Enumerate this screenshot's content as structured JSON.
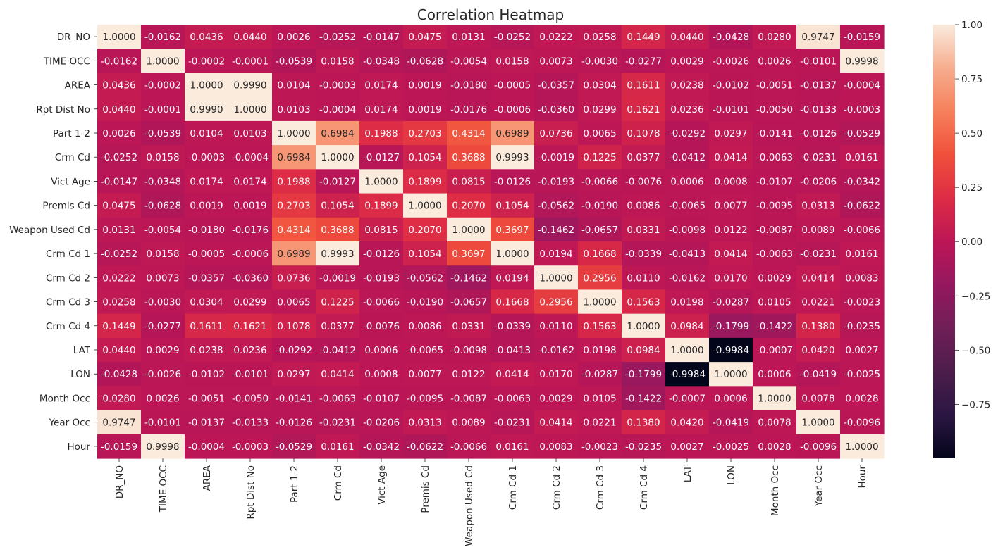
{
  "chart_data": {
    "type": "heatmap",
    "title": "Correlation Heatmap",
    "labels": [
      "DR_NO",
      "TIME OCC",
      "AREA",
      "Rpt Dist No",
      "Part 1-2",
      "Crm Cd",
      "Vict Age",
      "Premis Cd",
      "Weapon Used Cd",
      "Crm Cd 1",
      "Crm Cd 2",
      "Crm Cd 3",
      "Crm Cd 4",
      "LAT",
      "LON",
      "Month Occ",
      "Year Occ",
      "Hour"
    ],
    "matrix": [
      [
        1.0,
        -0.0162,
        0.0436,
        0.044,
        0.0026,
        -0.0252,
        -0.0147,
        0.0475,
        0.0131,
        -0.0252,
        0.0222,
        0.0258,
        0.1449,
        0.044,
        -0.0428,
        0.028,
        0.9747,
        -0.0159
      ],
      [
        -0.0162,
        1.0,
        -0.0002,
        -0.0001,
        -0.0539,
        0.0158,
        -0.0348,
        -0.0628,
        -0.0054,
        0.0158,
        0.0073,
        -0.003,
        -0.0277,
        0.0029,
        -0.0026,
        0.0026,
        -0.0101,
        0.9998
      ],
      [
        0.0436,
        -0.0002,
        1.0,
        0.999,
        0.0104,
        -0.0003,
        0.0174,
        0.0019,
        -0.018,
        -0.0005,
        -0.0357,
        0.0304,
        0.1611,
        0.0238,
        -0.0102,
        -0.0051,
        -0.0137,
        -0.0004
      ],
      [
        0.044,
        -0.0001,
        0.999,
        1.0,
        0.0103,
        -0.0004,
        0.0174,
        0.0019,
        -0.0176,
        -0.0006,
        -0.036,
        0.0299,
        0.1621,
        0.0236,
        -0.0101,
        -0.005,
        -0.0133,
        -0.0003
      ],
      [
        0.0026,
        -0.0539,
        0.0104,
        0.0103,
        1.0,
        0.6984,
        0.1988,
        0.2703,
        0.4314,
        0.6989,
        0.0736,
        0.0065,
        0.1078,
        -0.0292,
        0.0297,
        -0.0141,
        -0.0126,
        -0.0529
      ],
      [
        -0.0252,
        0.0158,
        -0.0003,
        -0.0004,
        0.6984,
        1.0,
        -0.0127,
        0.1054,
        0.3688,
        0.9993,
        -0.0019,
        0.1225,
        0.0377,
        -0.0412,
        0.0414,
        -0.0063,
        -0.0231,
        0.0161
      ],
      [
        -0.0147,
        -0.0348,
        0.0174,
        0.0174,
        0.1988,
        -0.0127,
        1.0,
        0.1899,
        0.0815,
        -0.0126,
        -0.0193,
        -0.0066,
        -0.0076,
        0.0006,
        0.0008,
        -0.0107,
        -0.0206,
        -0.0342
      ],
      [
        0.0475,
        -0.0628,
        0.0019,
        0.0019,
        0.2703,
        0.1054,
        0.1899,
        1.0,
        0.207,
        0.1054,
        -0.0562,
        -0.019,
        0.0086,
        -0.0065,
        0.0077,
        -0.0095,
        0.0313,
        -0.0622
      ],
      [
        0.0131,
        -0.0054,
        -0.018,
        -0.0176,
        0.4314,
        0.3688,
        0.0815,
        0.207,
        1.0,
        0.3697,
        -0.1462,
        -0.0657,
        0.0331,
        -0.0098,
        0.0122,
        -0.0087,
        0.0089,
        -0.0066
      ],
      [
        -0.0252,
        0.0158,
        -0.0005,
        -0.0006,
        0.6989,
        0.9993,
        -0.0126,
        0.1054,
        0.3697,
        1.0,
        0.0194,
        0.1668,
        -0.0339,
        -0.0413,
        0.0414,
        -0.0063,
        -0.0231,
        0.0161
      ],
      [
        0.0222,
        0.0073,
        -0.0357,
        -0.036,
        0.0736,
        -0.0019,
        -0.0193,
        -0.0562,
        -0.1462,
        0.0194,
        1.0,
        0.2956,
        0.011,
        -0.0162,
        0.017,
        0.0029,
        0.0414,
        0.0083
      ],
      [
        0.0258,
        -0.003,
        0.0304,
        0.0299,
        0.0065,
        0.1225,
        -0.0066,
        -0.019,
        -0.0657,
        0.1668,
        0.2956,
        1.0,
        0.1563,
        0.0198,
        -0.0287,
        0.0105,
        0.0221,
        -0.0023
      ],
      [
        0.1449,
        -0.0277,
        0.1611,
        0.1621,
        0.1078,
        0.0377,
        -0.0076,
        0.0086,
        0.0331,
        -0.0339,
        0.011,
        0.1563,
        1.0,
        0.0984,
        -0.1799,
        -0.1422,
        0.138,
        -0.0235
      ],
      [
        0.044,
        0.0029,
        0.0238,
        0.0236,
        -0.0292,
        -0.0412,
        0.0006,
        -0.0065,
        -0.0098,
        -0.0413,
        -0.0162,
        0.0198,
        0.0984,
        1.0,
        -0.9984,
        -0.0007,
        0.042,
        0.0027
      ],
      [
        -0.0428,
        -0.0026,
        -0.0102,
        -0.0101,
        0.0297,
        0.0414,
        0.0008,
        0.0077,
        0.0122,
        0.0414,
        0.017,
        -0.0287,
        -0.1799,
        -0.9984,
        1.0,
        0.0006,
        -0.0419,
        -0.0025
      ],
      [
        0.028,
        0.0026,
        -0.0051,
        -0.005,
        -0.0141,
        -0.0063,
        -0.0107,
        -0.0095,
        -0.0087,
        -0.0063,
        0.0029,
        0.0105,
        -0.1422,
        -0.0007,
        0.0006,
        1.0,
        0.0078,
        0.0028
      ],
      [
        0.9747,
        -0.0101,
        -0.0137,
        -0.0133,
        -0.0126,
        -0.0231,
        -0.0206,
        0.0313,
        0.0089,
        -0.0231,
        0.0414,
        0.0221,
        0.138,
        0.042,
        -0.0419,
        0.0078,
        1.0,
        -0.0096
      ],
      [
        -0.0159,
        0.9998,
        -0.0004,
        -0.0003,
        -0.0529,
        0.0161,
        -0.0342,
        -0.0622,
        -0.0066,
        0.0161,
        0.0083,
        -0.0023,
        -0.0235,
        0.0027,
        -0.0025,
        0.0028,
        -0.0096,
        1.0
      ]
    ],
    "value_format": "0.0000",
    "colormap": "rocket",
    "colorbar": {
      "range": [
        -0.9984,
        1.0
      ],
      "ticks": [
        1.0,
        0.75,
        0.5,
        0.25,
        0.0,
        -0.25,
        -0.5,
        -0.75
      ],
      "tick_labels": [
        "1.00",
        "0.75",
        "0.50",
        "0.25",
        "0.00",
        "−0.25",
        "−0.50",
        "−0.75"
      ]
    }
  }
}
